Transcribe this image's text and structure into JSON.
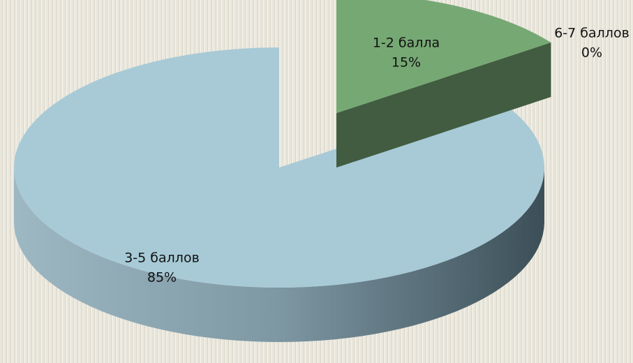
{
  "chart_data": {
    "type": "pie",
    "categories": [
      "1-2 балла",
      "3-5 баллов",
      "6-7 баллов"
    ],
    "values": [
      15,
      85,
      0
    ],
    "value_labels": [
      "15%",
      "85%",
      "0%"
    ],
    "colors": [
      "#76a874",
      "#a7cad6",
      "#6d7d6b"
    ]
  }
}
